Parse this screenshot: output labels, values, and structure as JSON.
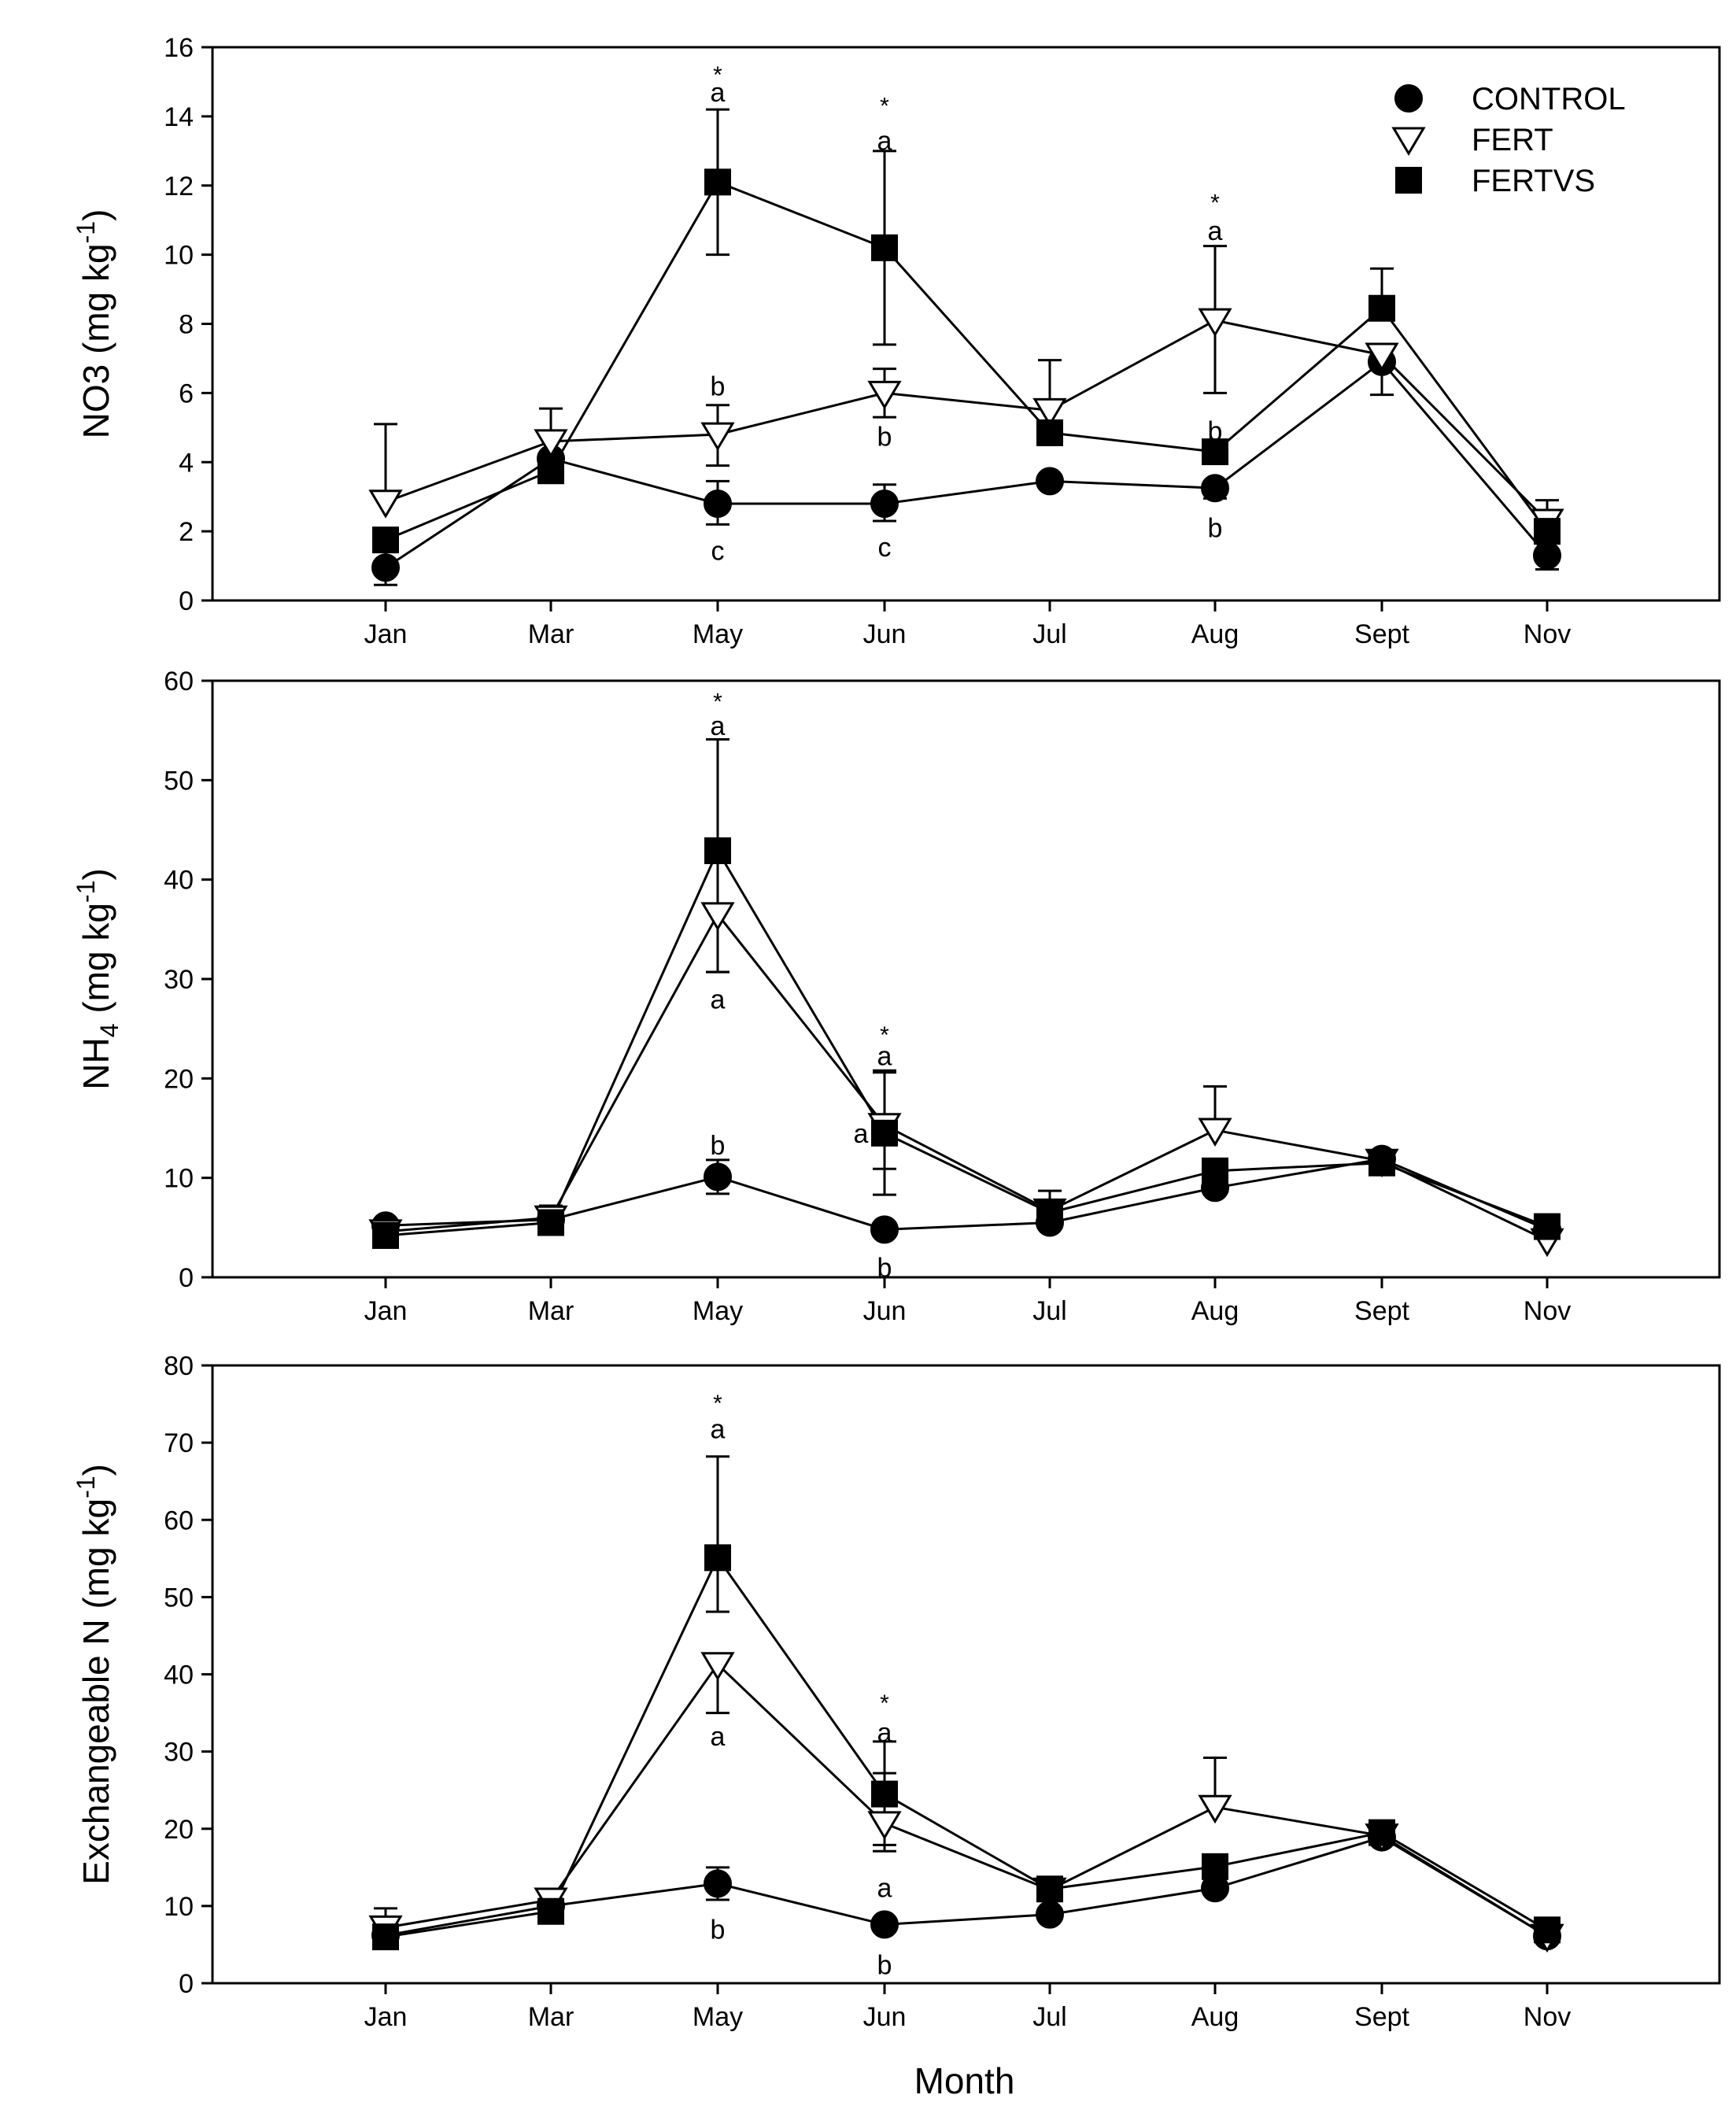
{
  "chart_data": [
    {
      "type": "line",
      "id": "no3",
      "ylabel": "NO3 (mg kg",
      "ylabel_sup": "-1",
      "ylim": [
        0,
        16
      ],
      "yticks": [
        0,
        2,
        4,
        6,
        8,
        10,
        12,
        14,
        16
      ],
      "categories": [
        "Jan",
        "Mar",
        "May",
        "Jun",
        "Jul",
        "Aug",
        "Sept",
        "Nov"
      ],
      "legend_position": "top-right",
      "series": [
        {
          "name": "CONTROL",
          "marker": "circle",
          "values": [
            0.95,
            4.1,
            2.8,
            2.8,
            3.45,
            3.25,
            6.9,
            1.3
          ],
          "error_up": [
            0.5,
            0,
            0.65,
            0.55,
            0,
            0,
            0,
            0.4
          ],
          "error_down": [
            0.5,
            0,
            0.6,
            0.5,
            0,
            0.3,
            0,
            0.4
          ]
        },
        {
          "name": "FERT",
          "marker": "triangle-down",
          "values": [
            2.85,
            4.6,
            4.8,
            6.0,
            5.5,
            8.1,
            7.1,
            2.3
          ],
          "error_up": [
            2.25,
            0.95,
            0.85,
            0.7,
            1.45,
            2.15,
            0,
            0.6
          ],
          "error_down": [
            0,
            0,
            0.9,
            0.7,
            1.0,
            2.1,
            1.15,
            0.4
          ]
        },
        {
          "name": "FERTVS",
          "marker": "square",
          "values": [
            1.75,
            3.75,
            12.1,
            10.2,
            4.85,
            4.3,
            8.45,
            2.0
          ],
          "error_up": [
            0,
            0,
            2.1,
            2.8,
            0,
            0,
            1.15,
            0
          ],
          "error_down": [
            0,
            0,
            2.1,
            2.8,
            0,
            0,
            0,
            0
          ]
        }
      ],
      "annotations": [
        {
          "x": "May",
          "y": 15.3,
          "text": "*",
          "kind": "star"
        },
        {
          "x": "May",
          "y": 14.7,
          "text": "a",
          "kind": "letter"
        },
        {
          "x": "May",
          "y": 6.2,
          "text": "b",
          "kind": "letter"
        },
        {
          "x": "May",
          "y": 1.45,
          "text": "c",
          "kind": "letter"
        },
        {
          "x": "Jun",
          "y": 14.4,
          "text": "*",
          "kind": "star"
        },
        {
          "x": "Jun",
          "y": 13.3,
          "text": "a",
          "kind": "letter"
        },
        {
          "x": "Jun",
          "y": 4.75,
          "text": "b",
          "kind": "letter"
        },
        {
          "x": "Jun",
          "y": 1.55,
          "text": "c",
          "kind": "letter"
        },
        {
          "x": "Aug",
          "y": 11.6,
          "text": "*",
          "kind": "star"
        },
        {
          "x": "Aug",
          "y": 10.7,
          "text": "a",
          "kind": "letter"
        },
        {
          "x": "Aug",
          "y": 4.9,
          "text": "b",
          "kind": "letter"
        },
        {
          "x": "Aug",
          "y": 2.1,
          "text": "b",
          "kind": "letter"
        }
      ]
    },
    {
      "type": "line",
      "id": "nh4",
      "ylabel": "NH",
      "ylabel_sub": "4",
      "ylabel_tail": " (mg kg",
      "ylabel_sup": "-1",
      "ylim": [
        0,
        60
      ],
      "yticks": [
        0,
        10,
        20,
        30,
        40,
        50,
        60
      ],
      "categories": [
        "Jan",
        "Mar",
        "May",
        "Jun",
        "Jul",
        "Aug",
        "Sept",
        "Nov"
      ],
      "series": [
        {
          "name": "CONTROL",
          "marker": "circle",
          "values": [
            5.2,
            5.8,
            10.1,
            4.8,
            5.5,
            9.0,
            11.9,
            4.8
          ],
          "error_up": [
            0,
            0,
            1.7,
            0,
            0,
            0,
            0,
            0
          ],
          "error_down": [
            0,
            0,
            1.7,
            0,
            0,
            0,
            0,
            0
          ]
        },
        {
          "name": "FERT",
          "marker": "triangle-down",
          "values": [
            4.6,
            6.0,
            36.5,
            15.3,
            6.7,
            14.8,
            11.7,
            3.7
          ],
          "error_up": [
            0,
            1.2,
            0,
            5.3,
            2.0,
            4.4,
            0,
            0
          ],
          "error_down": [
            0,
            0,
            5.8,
            4.4,
            0,
            0,
            0,
            0
          ]
        },
        {
          "name": "FERTVS",
          "marker": "square",
          "values": [
            4.2,
            5.5,
            42.9,
            14.5,
            6.5,
            10.7,
            11.5,
            5.1
          ],
          "error_up": [
            0,
            0,
            11.2,
            6.3,
            0,
            0,
            0,
            0
          ],
          "error_down": [
            0,
            0,
            12.2,
            6.2,
            0,
            0,
            0,
            0
          ]
        }
      ],
      "annotations": [
        {
          "x": "May",
          "y": 58.2,
          "text": "*",
          "kind": "star"
        },
        {
          "x": "May",
          "y": 55.5,
          "text": "a",
          "kind": "letter"
        },
        {
          "x": "May",
          "y": 28.0,
          "text": "a",
          "kind": "letter"
        },
        {
          "x": "May",
          "y": 13.3,
          "text": "b",
          "kind": "letter"
        },
        {
          "x": "Jun",
          "y": 24.7,
          "text": "*",
          "kind": "star"
        },
        {
          "x": "Jun",
          "y": 22.3,
          "text": "a",
          "kind": "letter"
        },
        {
          "x": "Jun",
          "y": 14.5,
          "text": "a",
          "kind": "letter",
          "dx": -30
        },
        {
          "x": "Jun",
          "y": 1.0,
          "text": "b",
          "kind": "letter"
        }
      ]
    },
    {
      "type": "line",
      "id": "exch",
      "ylabel": "Exchangeable N (mg kg",
      "ylabel_sup": "-1",
      "xlabel": "Month",
      "ylim": [
        0,
        80
      ],
      "yticks": [
        0,
        10,
        20,
        30,
        40,
        50,
        60,
        70,
        80
      ],
      "categories": [
        "Jan",
        "Mar",
        "May",
        "Jun",
        "Jul",
        "Aug",
        "Sept",
        "Nov"
      ],
      "series": [
        {
          "name": "CONTROL",
          "marker": "circle",
          "values": [
            6.2,
            10.0,
            12.9,
            7.6,
            8.9,
            12.3,
            18.9,
            6.1
          ],
          "error_up": [
            0,
            0,
            2.1,
            0,
            0,
            0,
            0,
            0
          ],
          "error_down": [
            0,
            0,
            2.1,
            0,
            0,
            0,
            0,
            0
          ]
        },
        {
          "name": "FERT",
          "marker": "triangle-down",
          "values": [
            7.2,
            10.8,
            41.3,
            20.7,
            12.1,
            22.8,
            19.1,
            6.1
          ],
          "error_up": [
            2.5,
            1.3,
            0,
            6.5,
            0,
            6.4,
            0,
            0
          ],
          "error_down": [
            0,
            0,
            6.3,
            3.6,
            0,
            0,
            0,
            0
          ]
        },
        {
          "name": "FERTVS",
          "marker": "square",
          "values": [
            6.0,
            9.3,
            55.1,
            24.5,
            12.2,
            15.1,
            19.5,
            6.9
          ],
          "error_up": [
            0,
            0,
            13.1,
            6.8,
            0,
            0,
            0,
            0
          ],
          "error_down": [
            0,
            0,
            7.0,
            6.6,
            0,
            0,
            0,
            0
          ]
        }
      ],
      "annotations": [
        {
          "x": "May",
          "y": 75.5,
          "text": "*",
          "kind": "star"
        },
        {
          "x": "May",
          "y": 71.8,
          "text": "a",
          "kind": "letter"
        },
        {
          "x": "May",
          "y": 32.0,
          "text": "a",
          "kind": "letter"
        },
        {
          "x": "May",
          "y": 7.0,
          "text": "b",
          "kind": "letter"
        },
        {
          "x": "Jun",
          "y": 36.7,
          "text": "*",
          "kind": "star"
        },
        {
          "x": "Jun",
          "y": 32.5,
          "text": "a",
          "kind": "letter"
        },
        {
          "x": "Jun",
          "y": 12.4,
          "text": "a",
          "kind": "letter"
        },
        {
          "x": "Jun",
          "y": 2.4,
          "text": "b",
          "kind": "letter"
        }
      ]
    }
  ]
}
